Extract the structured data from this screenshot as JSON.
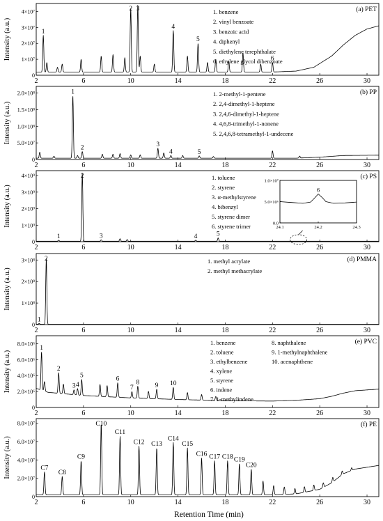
{
  "figure": {
    "y_label": "Intensity (a.u.)",
    "x_label": "Retention Time  (min)"
  },
  "chart_data": [
    {
      "type": "line",
      "panel_label": "(a) PET",
      "xlim": [
        2,
        31
      ],
      "ylim": [
        0,
        45000000
      ],
      "x_ticks": [
        2,
        6,
        10,
        14,
        18,
        22,
        26,
        30
      ],
      "y_ticks": [
        {
          "v": 0,
          "t": "0"
        },
        {
          "v": 10000000,
          "t": "1×10⁷"
        },
        {
          "v": 20000000,
          "t": "2×10⁷"
        },
        {
          "v": 30000000,
          "t": "3×10⁷"
        },
        {
          "v": 40000000,
          "t": "4×10⁷"
        }
      ],
      "baseline": [
        [
          2,
          2000000
        ],
        [
          22,
          2000000
        ],
        [
          24,
          2600000
        ],
        [
          25.5,
          5000000
        ],
        [
          27,
          12000000
        ],
        [
          28,
          19000000
        ],
        [
          29,
          25000000
        ],
        [
          30,
          29000000
        ],
        [
          31,
          31000000
        ]
      ],
      "peaks": [
        {
          "x": 2.6,
          "h": 23000000,
          "label": "1"
        },
        {
          "x": 2.9,
          "h": 6000000
        },
        {
          "x": 3.8,
          "h": 3000000
        },
        {
          "x": 4.2,
          "h": 5000000
        },
        {
          "x": 5.8,
          "h": 8000000
        },
        {
          "x": 7.5,
          "h": 10000000
        },
        {
          "x": 8.5,
          "h": 11000000
        },
        {
          "x": 9.5,
          "h": 9000000
        },
        {
          "x": 10.0,
          "h": 40000000,
          "label": "2"
        },
        {
          "x": 10.6,
          "h": 42000000,
          "label": "3"
        },
        {
          "x": 10.8,
          "h": 10000000
        },
        {
          "x": 12.0,
          "h": 5000000
        },
        {
          "x": 13.6,
          "h": 26000000,
          "label": "4"
        },
        {
          "x": 14.8,
          "h": 10000000
        },
        {
          "x": 15.7,
          "h": 18000000,
          "label": "5"
        },
        {
          "x": 16.5,
          "h": 6000000
        },
        {
          "x": 17.2,
          "h": 8000000
        },
        {
          "x": 18.3,
          "h": 7000000
        },
        {
          "x": 19.5,
          "h": 12000000
        },
        {
          "x": 21.0,
          "h": 5000000
        },
        {
          "x": 22.0,
          "h": 6000000,
          "label": "6"
        }
      ],
      "legend_items": [
        "1. benzene",
        "2. vinyl benzoate",
        "3. benzoic acid",
        "4. diphenyl",
        "5. diethylene terephthalate",
        "6. ethylene glycol dibenzoate"
      ]
    },
    {
      "type": "line",
      "panel_label": "(b) PP",
      "xlim": [
        2,
        31
      ],
      "ylim": [
        0,
        220000000
      ],
      "x_ticks": [
        2,
        6,
        10,
        14,
        18,
        22,
        26,
        30
      ],
      "y_ticks": [
        {
          "v": 0,
          "t": "0"
        },
        {
          "v": 50000000,
          "t": "5.0×10⁷"
        },
        {
          "v": 100000000,
          "t": "1.0×10⁸"
        },
        {
          "v": 150000000,
          "t": "1.5×10⁸"
        },
        {
          "v": 200000000,
          "t": "2.0×10⁸"
        }
      ],
      "baseline": [
        [
          2,
          4000000
        ],
        [
          24,
          4000000
        ],
        [
          26,
          7000000
        ],
        [
          28,
          12000000
        ],
        [
          31,
          13000000
        ]
      ],
      "peaks": [
        {
          "x": 2.3,
          "h": 18000000
        },
        {
          "x": 3.5,
          "h": 6000000
        },
        {
          "x": 5.1,
          "h": 188000000,
          "label": "1"
        },
        {
          "x": 5.5,
          "h": 8000000
        },
        {
          "x": 5.9,
          "h": 20000000,
          "label": "2"
        },
        {
          "x": 7.6,
          "h": 12000000
        },
        {
          "x": 8.5,
          "h": 12000000
        },
        {
          "x": 9.1,
          "h": 14000000
        },
        {
          "x": 10.0,
          "h": 10000000
        },
        {
          "x": 10.8,
          "h": 10000000
        },
        {
          "x": 12.3,
          "h": 30000000,
          "label": "3"
        },
        {
          "x": 12.8,
          "h": 16000000
        },
        {
          "x": 13.4,
          "h": 8000000,
          "label": "4"
        },
        {
          "x": 14.4,
          "h": 8000000
        },
        {
          "x": 15.8,
          "h": 7000000,
          "label": "5"
        },
        {
          "x": 17.0,
          "h": 5000000
        },
        {
          "x": 22.0,
          "h": 22000000
        },
        {
          "x": 24.3,
          "h": 6000000
        }
      ],
      "legend_items": [
        "1. 2-methyl-1-pentene",
        "2. 2,4-dimethyl-1-heptene",
        "3. 2,4,6-dimethyl-1-heptene",
        "4. 4,6,8-trimethyl-1-nonene",
        "5. 2,4,6,8-tetramethyl-1-undecene"
      ]
    },
    {
      "type": "line",
      "panel_label": "(c) PS",
      "xlim": [
        2,
        31
      ],
      "ylim": [
        0,
        4300000000
      ],
      "x_ticks": [
        2,
        6,
        10,
        14,
        18,
        22,
        26,
        30
      ],
      "y_ticks": [
        {
          "v": 0,
          "t": "0"
        },
        {
          "v": 1000000000,
          "t": "1×10⁹"
        },
        {
          "v": 2000000000,
          "t": "2×10⁹"
        },
        {
          "v": 3000000000,
          "t": "3×10⁹"
        },
        {
          "v": 4000000000,
          "t": "4×10⁹"
        }
      ],
      "baseline": [
        [
          2,
          30000000
        ],
        [
          31,
          30000000
        ]
      ],
      "peaks": [
        {
          "x": 3.9,
          "h": 60000000,
          "label": "1"
        },
        {
          "x": 5.9,
          "h": 4150000000,
          "label": "2"
        },
        {
          "x": 7.5,
          "h": 80000000,
          "label": "3"
        },
        {
          "x": 9.1,
          "h": 150000000
        },
        {
          "x": 9.7,
          "h": 100000000
        },
        {
          "x": 15.5,
          "h": 60000000,
          "label": "4"
        },
        {
          "x": 17.4,
          "h": 200000000,
          "label": "5"
        }
      ],
      "legend_items": [
        "1. toluene",
        "2. styrene",
        "3. α-methylstyrene",
        "4. bibenzyl",
        "5. styrene dimer",
        "6. styrene trimer"
      ],
      "inset": {
        "xlim": [
          24.1,
          24.3
        ],
        "ylim": [
          0,
          10000000
        ],
        "x_ticks": [
          {
            "v": 24.1,
            "t": "24.1"
          },
          {
            "v": 24.2,
            "t": "24.2"
          },
          {
            "v": 24.3,
            "t": "24.3"
          }
        ],
        "y_ticks": [
          {
            "v": 0,
            "t": "0.0"
          },
          {
            "v": 5000000,
            "t": "5.0×10⁶"
          },
          {
            "v": 10000000,
            "t": "1.0×10⁷"
          }
        ],
        "trace": [
          [
            24.1,
            5000000
          ],
          [
            24.13,
            4800000
          ],
          [
            24.16,
            4600000
          ],
          [
            24.18,
            4900000
          ],
          [
            24.19,
            5800000
          ],
          [
            24.2,
            6800000
          ],
          [
            24.21,
            6000000
          ],
          [
            24.22,
            5000000
          ],
          [
            24.24,
            4600000
          ],
          [
            24.27,
            4700000
          ],
          [
            24.3,
            4900000
          ]
        ],
        "peak_label": "6"
      }
    },
    {
      "type": "line",
      "panel_label": "(d) PMMA",
      "xlim": [
        2,
        31
      ],
      "ylim": [
        0,
        330000000
      ],
      "x_ticks": [
        2,
        6,
        10,
        14,
        18,
        22,
        26,
        30
      ],
      "y_ticks": [
        {
          "v": 0,
          "t": "0"
        },
        {
          "v": 100000000,
          "t": "1×10⁸"
        },
        {
          "v": 200000000,
          "t": "2×10⁸"
        },
        {
          "v": 300000000,
          "t": "3×10⁸"
        }
      ],
      "baseline": [
        [
          2,
          1500000
        ],
        [
          31,
          1500000
        ]
      ],
      "peaks": [
        {
          "x": 2.25,
          "h": 4000000,
          "label": "1"
        },
        {
          "x": 2.85,
          "h": 305000000,
          "label": "2"
        }
      ],
      "legend_items": [
        "1. methyl acrylate",
        "2. methyl methacrylate"
      ]
    },
    {
      "type": "line",
      "panel_label": "(e) PVC",
      "xlim": [
        2,
        31
      ],
      "ylim": [
        0,
        9000000
      ],
      "x_ticks": [
        2,
        6,
        10,
        14,
        18,
        22,
        26,
        30
      ],
      "y_ticks": [
        {
          "v": 0,
          "t": "0"
        },
        {
          "v": 2000000,
          "t": "2.0×10⁶"
        },
        {
          "v": 4000000,
          "t": "4.0×10⁶"
        },
        {
          "v": 6000000,
          "t": "6.0×10⁶"
        },
        {
          "v": 8000000,
          "t": "8.0×10⁶"
        }
      ],
      "baseline": [
        [
          2,
          2400000
        ],
        [
          3,
          1900000
        ],
        [
          6,
          1500000
        ],
        [
          10,
          1200000
        ],
        [
          14,
          1000000
        ],
        [
          18,
          850000
        ],
        [
          22,
          800000
        ],
        [
          24,
          900000
        ],
        [
          26,
          1100000
        ],
        [
          27,
          1400000
        ],
        [
          28,
          1800000
        ],
        [
          29,
          2100000
        ],
        [
          31,
          2300000
        ]
      ],
      "peaks": [
        {
          "x": 2.45,
          "h": 4800000,
          "label": "1"
        },
        {
          "x": 2.7,
          "h": 1200000
        },
        {
          "x": 3.9,
          "h": 2600000,
          "label": "2"
        },
        {
          "x": 4.3,
          "h": 1200000
        },
        {
          "x": 5.2,
          "h": 600000,
          "label": "3"
        },
        {
          "x": 5.5,
          "h": 800000,
          "label": "4"
        },
        {
          "x": 5.85,
          "h": 2000000,
          "label": "5"
        },
        {
          "x": 7.4,
          "h": 1500000
        },
        {
          "x": 8.0,
          "h": 1400000
        },
        {
          "x": 8.9,
          "h": 1800000,
          "label": "6"
        },
        {
          "x": 10.1,
          "h": 800000,
          "label": "7"
        },
        {
          "x": 10.6,
          "h": 1500000,
          "label": "8"
        },
        {
          "x": 11.5,
          "h": 900000
        },
        {
          "x": 12.2,
          "h": 1200000,
          "label": "9"
        },
        {
          "x": 13.6,
          "h": 1500000,
          "label": "10"
        },
        {
          "x": 14.8,
          "h": 900000
        },
        {
          "x": 16.0,
          "h": 700000
        },
        {
          "x": 17.2,
          "h": 500000
        }
      ],
      "legend_items": [
        "1. benzene",
        "2. toluene",
        "3. ethylbenzene",
        "4. xylene",
        "5. styrene",
        "6. indene",
        "7. 1-methylindene",
        "8. naphthalene",
        "9. 1-methylnaphthalene",
        "10. acenaphthene"
      ]
    },
    {
      "type": "line",
      "panel_label": "(f) PE",
      "xlim": [
        2,
        31
      ],
      "ylim": [
        0,
        85000000
      ],
      "x_ticks": [
        2,
        6,
        10,
        14,
        18,
        22,
        26,
        30
      ],
      "y_ticks": [
        {
          "v": 0,
          "t": "0"
        },
        {
          "v": 20000000,
          "t": "2.0×10⁷"
        },
        {
          "v": 40000000,
          "t": "4.0×10⁷"
        },
        {
          "v": 60000000,
          "t": "6.0×10⁷"
        },
        {
          "v": 80000000,
          "t": "8.0×10⁷"
        }
      ],
      "baseline": [
        [
          2,
          2000000
        ],
        [
          22,
          2000000
        ],
        [
          24,
          3000000
        ],
        [
          26,
          8000000
        ],
        [
          27,
          15000000
        ],
        [
          28,
          25000000
        ],
        [
          29,
          30000000
        ],
        [
          30,
          32000000
        ],
        [
          31,
          34000000
        ]
      ],
      "peaks": [
        {
          "x": 2.7,
          "h": 25000000,
          "label": "C7"
        },
        {
          "x": 4.2,
          "h": 20000000,
          "label": "C8"
        },
        {
          "x": 5.8,
          "h": 37000000,
          "label": "C9"
        },
        {
          "x": 7.5,
          "h": 78000000,
          "label": "C10"
        },
        {
          "x": 9.1,
          "h": 64000000,
          "label": "C11"
        },
        {
          "x": 10.7,
          "h": 53000000,
          "label": "C12"
        },
        {
          "x": 12.2,
          "h": 51000000,
          "label": "C13"
        },
        {
          "x": 13.6,
          "h": 57000000,
          "label": "C14"
        },
        {
          "x": 14.8,
          "h": 51000000,
          "label": "C15"
        },
        {
          "x": 16.0,
          "h": 40000000,
          "label": "C16"
        },
        {
          "x": 17.1,
          "h": 37000000,
          "label": "C17"
        },
        {
          "x": 18.2,
          "h": 37000000,
          "label": "C18"
        },
        {
          "x": 19.2,
          "h": 34000000,
          "label": "C19"
        },
        {
          "x": 20.2,
          "h": 28000000,
          "label": "C20"
        },
        {
          "x": 21.2,
          "h": 15000000
        },
        {
          "x": 22.1,
          "h": 10000000
        },
        {
          "x": 23.0,
          "h": 8000000
        },
        {
          "x": 23.9,
          "h": 6000000
        },
        {
          "x": 24.7,
          "h": 6000000
        },
        {
          "x": 25.5,
          "h": 6000000
        },
        {
          "x": 26.3,
          "h": 5000000
        },
        {
          "x": 27.1,
          "h": 5000000
        },
        {
          "x": 27.9,
          "h": 4000000
        },
        {
          "x": 28.7,
          "h": 3000000
        }
      ]
    }
  ]
}
